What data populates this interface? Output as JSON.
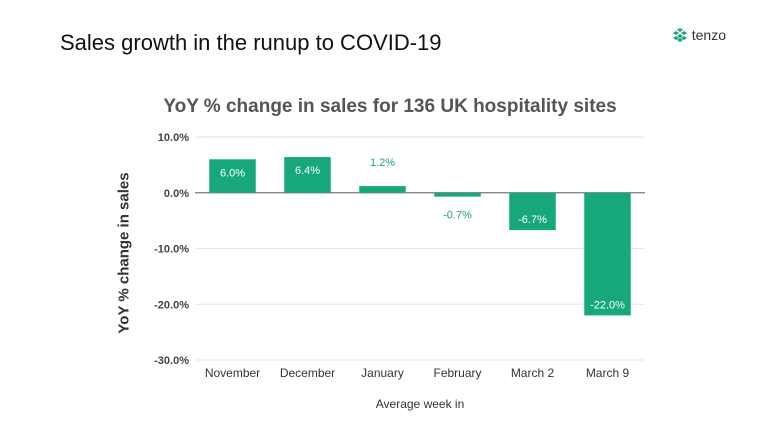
{
  "slide": {
    "title": "Sales growth in the runup to COVID-19",
    "brand_name": "tenzo",
    "brand_icon": "tenzo-logo-icon"
  },
  "colors": {
    "bar": "#16a77a",
    "label_inside": "#ffffff",
    "label_outside": "#16a77a",
    "grid": "#e6e6e6",
    "zero_line": "#7a7a7a"
  },
  "chart_data": {
    "type": "bar",
    "title": "YoY % change in sales for 136 UK hospitality sites",
    "xlabel": "Average week in",
    "ylabel": "YoY % change in sales",
    "categories": [
      "November",
      "December",
      "January",
      "February",
      "March 2",
      "March 9"
    ],
    "values": [
      6.0,
      6.4,
      1.2,
      -0.7,
      -6.7,
      -22.0
    ],
    "data_labels": [
      "6.0%",
      "6.4%",
      "1.2%",
      "-0.7%",
      "-6.7%",
      "-22.0%"
    ],
    "ylim": [
      -30,
      10
    ],
    "yticks": [
      10,
      0,
      -10,
      -20,
      -30
    ],
    "ytick_labels": [
      "10.0%",
      "0.0%",
      "-10.0%",
      "-20.0%",
      "-30.0%"
    ],
    "grid": true,
    "legend": "none"
  }
}
